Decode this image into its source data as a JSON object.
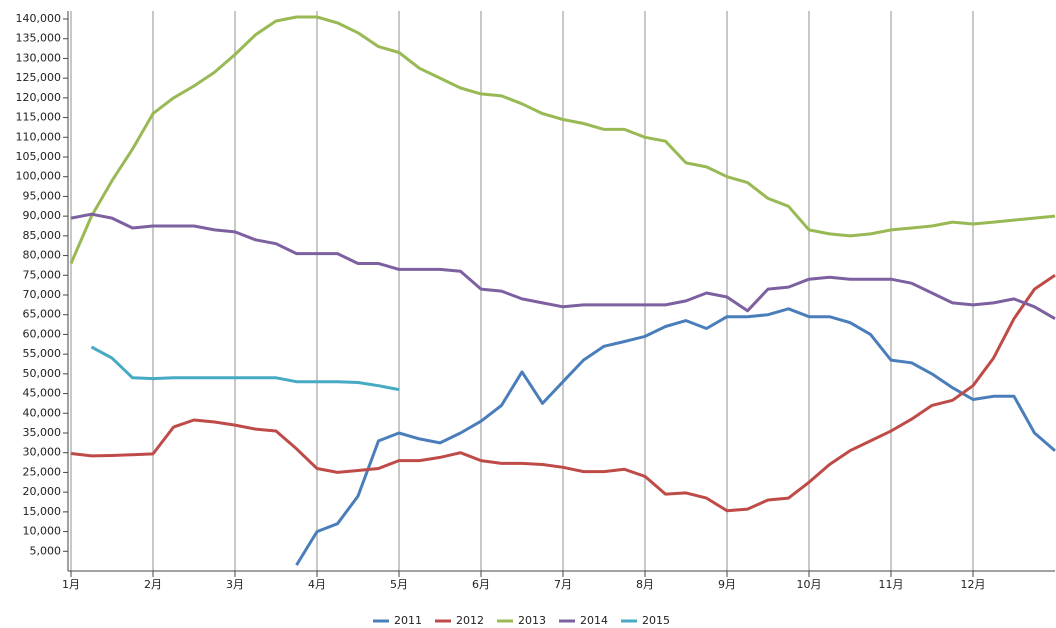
{
  "chart_data": {
    "type": "line",
    "categories": [
      "1月",
      null,
      null,
      null,
      "2月",
      null,
      null,
      null,
      "3月",
      null,
      null,
      null,
      "4月",
      null,
      null,
      null,
      "5月",
      null,
      null,
      null,
      "6月",
      null,
      null,
      null,
      "7月",
      null,
      null,
      null,
      "8月",
      null,
      null,
      null,
      "9月",
      null,
      null,
      null,
      "10月",
      null,
      null,
      null,
      "11月",
      null,
      null,
      null,
      "12月",
      null,
      null,
      null,
      null
    ],
    "series": [
      {
        "name": "2011",
        "color": "#4a7ebb",
        "values": [
          null,
          null,
          null,
          null,
          null,
          null,
          null,
          null,
          null,
          null,
          null,
          1500,
          10000,
          12000,
          19000,
          33000,
          35000,
          33500,
          32500,
          35000,
          38000,
          42000,
          50500,
          42500,
          48000,
          53500,
          57000,
          58200,
          59500,
          62000,
          63500,
          61500,
          64500,
          64500,
          65000,
          66500,
          64500,
          64500,
          63000,
          60000,
          53500,
          52800,
          50000,
          46500,
          43500,
          44300,
          44300,
          35000,
          30500
        ]
      },
      {
        "name": "2012",
        "color": "#be4b48",
        "values": [
          29800,
          29200,
          29300,
          29500,
          29700,
          36500,
          38300,
          37800,
          37000,
          36000,
          35500,
          31000,
          26000,
          25000,
          25500,
          26000,
          28000,
          28000,
          28800,
          30000,
          28000,
          27300,
          27300,
          27000,
          26300,
          25200,
          25200,
          25800,
          24000,
          19500,
          19800,
          18500,
          15300,
          15700,
          18000,
          18500,
          22500,
          27000,
          30500,
          33000,
          35500,
          38500,
          42000,
          43300,
          47000,
          54000,
          64000,
          71500,
          75000
        ]
      },
      {
        "name": "2013",
        "color": "#98b954",
        "values": [
          78000,
          90000,
          99000,
          107000,
          116000,
          120000,
          123000,
          126500,
          131000,
          136000,
          139500,
          140500,
          140500,
          139000,
          136500,
          133000,
          131500,
          127500,
          125000,
          122500,
          121000,
          120500,
          118500,
          116000,
          114500,
          113500,
          112000,
          112000,
          110000,
          109000,
          103500,
          102500,
          100000,
          98500,
          94500,
          92500,
          86500,
          85500,
          85000,
          85500,
          86500,
          87000,
          87500,
          88500,
          88000,
          88500,
          89000,
          89500,
          90000
        ]
      },
      {
        "name": "2014",
        "color": "#7d60a0",
        "values": [
          89500,
          90500,
          89500,
          87000,
          87500,
          87500,
          87500,
          86500,
          86000,
          84000,
          83000,
          80500,
          80500,
          80500,
          78000,
          78000,
          76500,
          76500,
          76500,
          76000,
          71500,
          71000,
          69000,
          68000,
          67000,
          67500,
          67500,
          67500,
          67500,
          67500,
          68500,
          70500,
          69500,
          66000,
          71500,
          72000,
          74000,
          74500,
          74000,
          74000,
          74000,
          73000,
          70500,
          68000,
          67500,
          68000,
          69000,
          67000,
          64000
        ]
      },
      {
        "name": "2015",
        "color": "#46aac5",
        "values": [
          null,
          56800,
          54000,
          49000,
          48800,
          49000,
          49000,
          49000,
          49000,
          49000,
          49000,
          48000,
          48000,
          48000,
          47800,
          47000,
          46000,
          null,
          null,
          null,
          null,
          null,
          null,
          null,
          null,
          null,
          null,
          null,
          null,
          null,
          null,
          null,
          null,
          null,
          null,
          null,
          null,
          null,
          null,
          null,
          null,
          null,
          null,
          null,
          null,
          null,
          null,
          null,
          null
        ]
      }
    ],
    "ylim": [
      0,
      140000
    ],
    "yticks": [
      {
        "value": 5000,
        "label": "5,000"
      },
      {
        "value": 10000,
        "label": "10,000"
      },
      {
        "value": 15000,
        "label": "15,000"
      },
      {
        "value": 20000,
        "label": "20,000"
      },
      {
        "value": 25000,
        "label": "25,000"
      },
      {
        "value": 30000,
        "label": "30,000"
      },
      {
        "value": 35000,
        "label": "35,000"
      },
      {
        "value": 40000,
        "label": "40,000"
      },
      {
        "value": 45000,
        "label": "45,000"
      },
      {
        "value": 50000,
        "label": "50,000"
      },
      {
        "value": 55000,
        "label": "55,000"
      },
      {
        "value": 60000,
        "label": "60,000"
      },
      {
        "value": 65000,
        "label": "65,000"
      },
      {
        "value": 70000,
        "label": "70,000"
      },
      {
        "value": 75000,
        "label": "75,000"
      },
      {
        "value": 80000,
        "label": "80,000"
      },
      {
        "value": 85000,
        "label": "85,000"
      },
      {
        "value": 90000,
        "label": "90,000"
      },
      {
        "value": 95000,
        "label": "95,000"
      },
      {
        "value": 100000,
        "label": "100,000"
      },
      {
        "value": 105000,
        "label": "105,000"
      },
      {
        "value": 110000,
        "label": "110,000"
      },
      {
        "value": 115000,
        "label": "115,000"
      },
      {
        "value": 120000,
        "label": "120,000"
      },
      {
        "value": 125000,
        "label": "125,000"
      },
      {
        "value": 130000,
        "label": "130,000"
      },
      {
        "value": 135000,
        "label": "135,000"
      },
      {
        "value": 140000,
        "label": "140,000"
      }
    ],
    "grid": true,
    "legend": "bottom"
  }
}
